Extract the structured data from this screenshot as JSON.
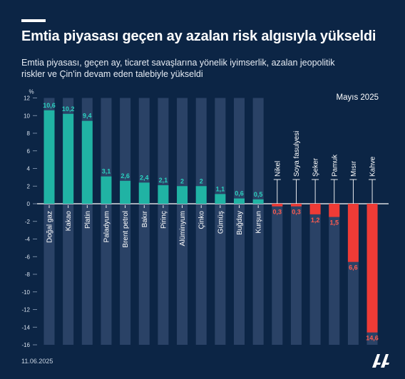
{
  "header": {
    "title": "Emtia piyasası geçen ay azalan risk algısıyla yükseldi",
    "subtitle": "Emtia piyasası, geçen ay, ticaret savaşlarına yönelik iyimserlik, azalan jeopolitik riskler ve Çin'in devam eden talebiyle yükseldi"
  },
  "footer": {
    "date": "11.06.2025",
    "logo_icon": "aa-logo-icon"
  },
  "colors": {
    "background": "#0c2545",
    "positive": "#20b3a4",
    "negative": "#ee3b36",
    "track": "#2a4266",
    "positive_label": "#2ad0bf",
    "negative_label": "#ff5b4f"
  },
  "chart_data": {
    "type": "bar",
    "period_label": "Mayıs 2025",
    "unit_label": "%",
    "ylim": [
      -16,
      12
    ],
    "yticks": [
      12,
      10,
      8,
      6,
      4,
      2,
      0,
      -2,
      -4,
      -6,
      -8,
      -10,
      -12,
      -14,
      -16
    ],
    "categories": [
      "Doğal gaz",
      "Kakao",
      "Platin",
      "Paladyum",
      "Brent petrol",
      "Bakır",
      "Pirinç",
      "Alüminyum",
      "Çinko",
      "Gümüş",
      "Buğday",
      "Kurşun",
      "Nikel",
      "Soya fasulyesi",
      "Şeker",
      "Pamuk",
      "Mısır",
      "Kahve"
    ],
    "values": [
      10.6,
      10.2,
      9.4,
      3.1,
      2.6,
      2.4,
      2.1,
      2,
      2,
      1.1,
      0.6,
      0.5,
      -0.3,
      -0.3,
      -1.2,
      -1.5,
      -6.6,
      -14.6
    ],
    "value_labels": [
      "10,6",
      "10,2",
      "9,4",
      "3,1",
      "2,6",
      "2,4",
      "2,1",
      "2",
      "2",
      "1,1",
      "0,6",
      "0,5",
      "0,3",
      "0,3",
      "1,2",
      "1,5",
      "6,6",
      "14,6"
    ]
  }
}
